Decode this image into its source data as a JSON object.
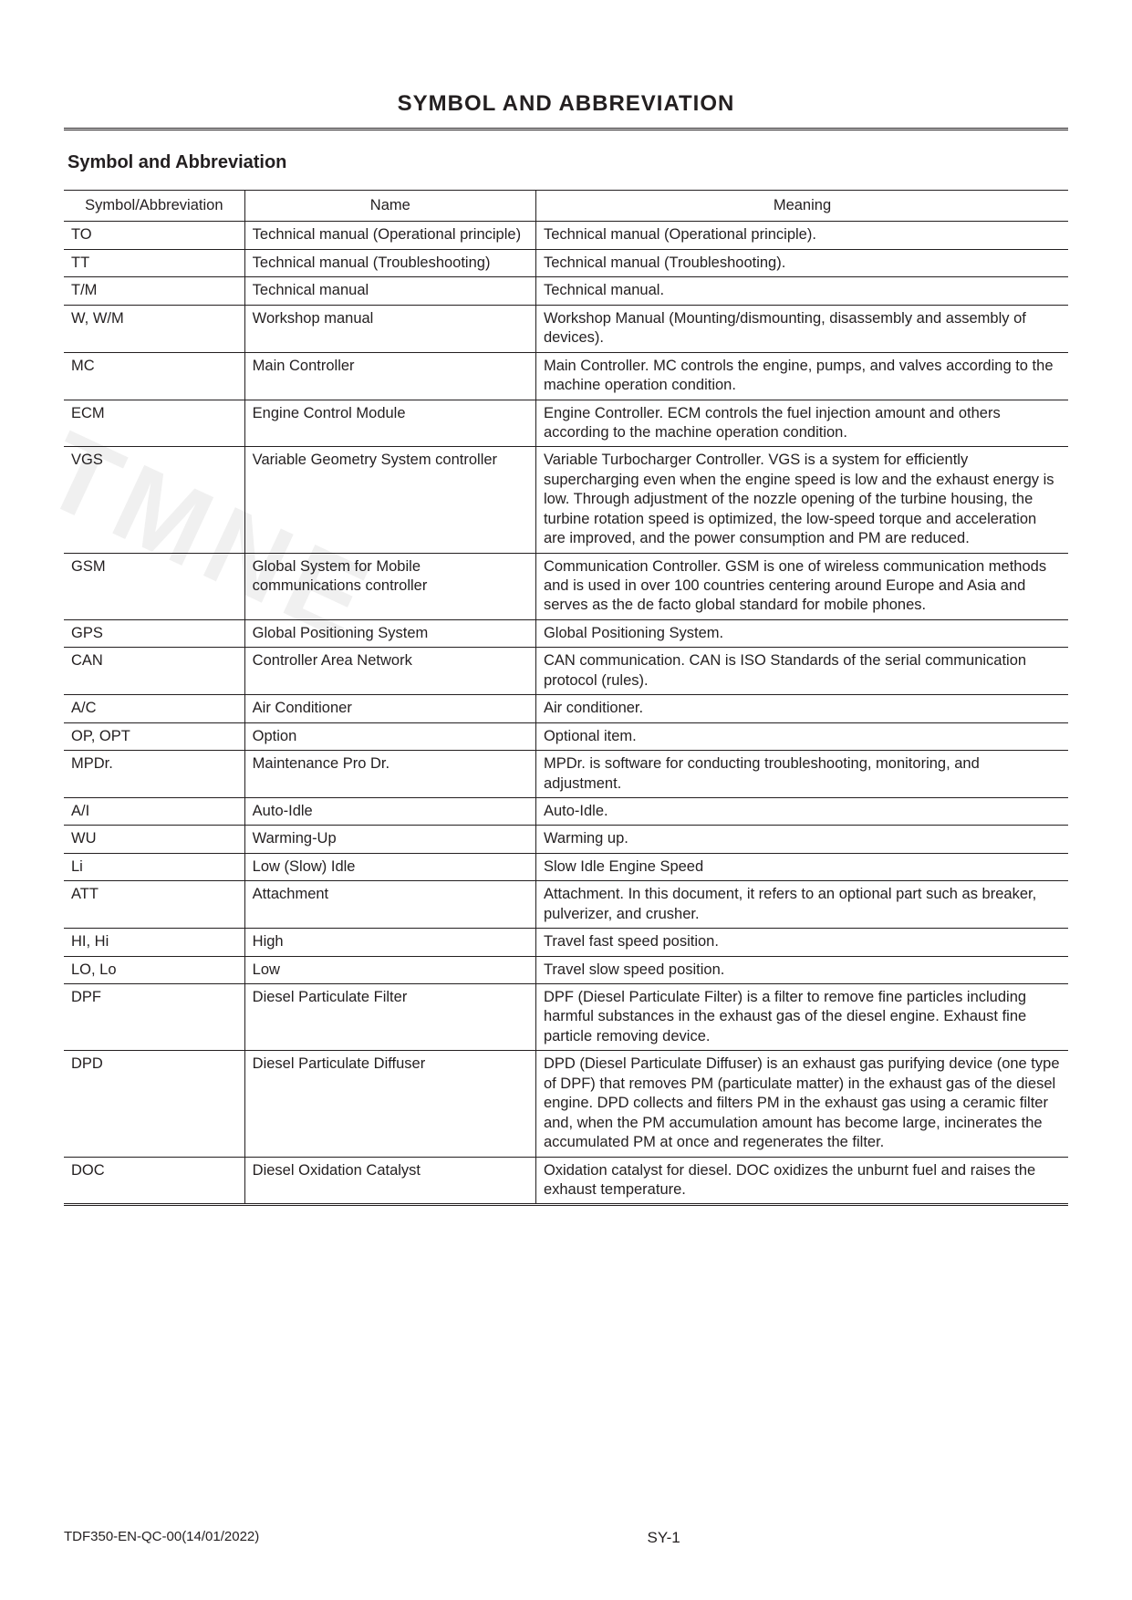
{
  "page_title": "SYMBOL AND ABBREVIATION",
  "section_heading": "Symbol and Abbreviation",
  "table": {
    "columns": [
      "Symbol/Abbreviation",
      "Name",
      "Meaning"
    ],
    "col_widths_pct": [
      18,
      29,
      53
    ],
    "border_color": "#231f20",
    "font_size": 16.5,
    "rows": [
      [
        "TO",
        "Technical manual (Operational principle)",
        "Technical manual (Operational principle)."
      ],
      [
        "TT",
        "Technical manual (Troubleshooting)",
        "Technical manual (Troubleshooting)."
      ],
      [
        "T/M",
        "Technical manual",
        "Technical manual."
      ],
      [
        "W, W/M",
        "Workshop manual",
        "Workshop Manual (Mounting/dismounting, disassembly and assembly of devices)."
      ],
      [
        "MC",
        "Main Controller",
        "Main Controller. MC controls the engine, pumps, and valves according to the machine operation condition."
      ],
      [
        "ECM",
        "Engine Control Module",
        "Engine Controller. ECM controls the fuel injection amount and others according to the machine operation condition."
      ],
      [
        "VGS",
        "Variable Geometry System controller",
        "Variable Turbocharger Controller. VGS is a system for efficiently supercharging even when the engine speed is low and the exhaust energy is low. Through adjustment of the nozzle opening of the turbine housing, the turbine rotation speed is optimized, the low-speed torque and acceleration are improved, and the power consumption and PM are reduced."
      ],
      [
        "GSM",
        "Global System for Mobile communications controller",
        "Communication Controller. GSM is one of wireless communication methods and is used in over 100 countries centering around Europe and Asia and serves as the de facto global standard for mobile phones."
      ],
      [
        "GPS",
        "Global Positioning System",
        "Global Positioning System."
      ],
      [
        "CAN",
        "Controller Area Network",
        "CAN communication. CAN is ISO Standards of the serial communication protocol (rules)."
      ],
      [
        "A/C",
        "Air Conditioner",
        "Air conditioner."
      ],
      [
        "OP, OPT",
        "Option",
        "Optional item."
      ],
      [
        "MPDr.",
        "Maintenance Pro Dr.",
        "MPDr. is software for conducting troubleshooting, monitoring, and adjustment."
      ],
      [
        "A/I",
        "Auto-Idle",
        "Auto-Idle."
      ],
      [
        "WU",
        "Warming-Up",
        "Warming up."
      ],
      [
        "Li",
        "Low (Slow) Idle",
        "Slow Idle Engine Speed"
      ],
      [
        "ATT",
        "Attachment",
        "Attachment. In this document, it refers to an optional part such as breaker, pulverizer, and crusher."
      ],
      [
        "HI, Hi",
        "High",
        "Travel fast speed position."
      ],
      [
        "LO, Lo",
        "Low",
        "Travel slow speed position."
      ],
      [
        "DPF",
        "Diesel Particulate Filter",
        "DPF (Diesel Particulate Filter) is a filter to remove fine particles including harmful substances in the exhaust gas of the diesel engine. Exhaust fine particle removing device."
      ],
      [
        "DPD",
        "Diesel Particulate Diffuser",
        "DPD (Diesel Particulate Diffuser) is an exhaust gas purifying device (one type of DPF) that removes PM (particulate matter) in the exhaust gas of the diesel engine. DPD collects and filters PM in the exhaust gas using a ceramic filter and, when the PM accumulation amount has become large, incinerates the accumulated PM at once and regenerates the filter."
      ],
      [
        "DOC",
        "Diesel Oxidation Catalyst",
        "Oxidation catalyst for diesel. DOC oxidizes the unburnt fuel and raises the exhaust temperature."
      ]
    ]
  },
  "footer": {
    "doc_number": "TDF350-EN-QC-00(14/01/2022)",
    "page_number": "SY-1"
  },
  "watermark_text": "TMNE",
  "colors": {
    "text": "#231f20",
    "background": "#ffffff"
  }
}
